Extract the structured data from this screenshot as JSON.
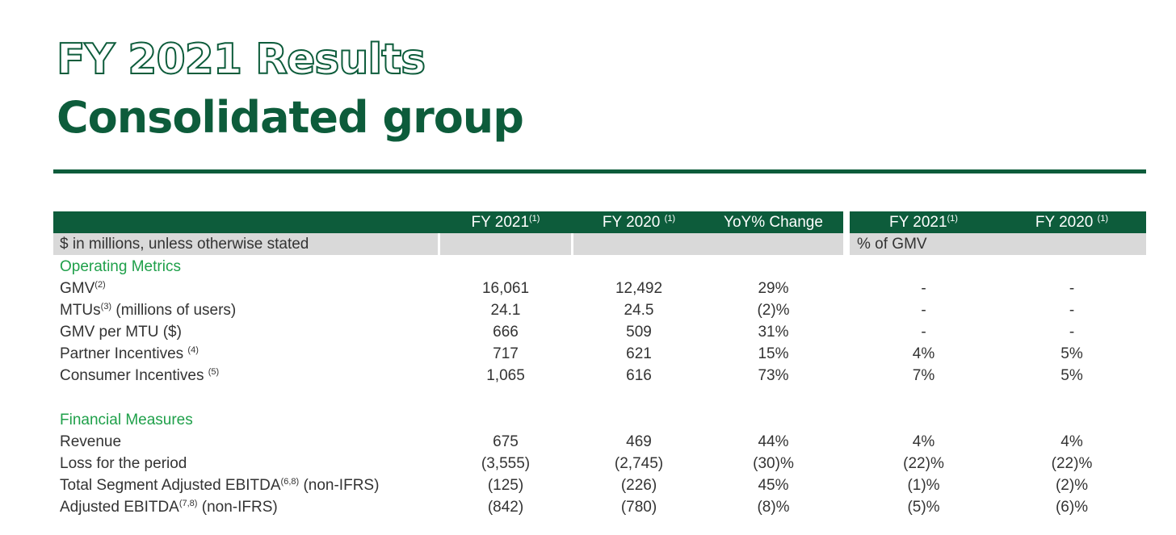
{
  "title_line1": "FY 2021 Results",
  "title_line2": "Consolidated group",
  "header": {
    "col1": "FY 2021",
    "col1_note": "(1)",
    "col2": "FY 2020",
    "col2_note": "(1)",
    "col3": "YoY% Change",
    "col4": "FY 2021",
    "col4_note": "(1)",
    "col5": "FY 2020",
    "col5_note": "(1)"
  },
  "subheader": {
    "units": "$ in millions, unless otherwise stated",
    "gmv_pct": "% of GMV"
  },
  "sections": {
    "operating": "Operating Metrics",
    "financial": "Financial Measures"
  },
  "rows": [
    {
      "label": "GMV",
      "note": "(2)",
      "suffix": "",
      "v1": "16,061",
      "v2": "12,492",
      "v3": "29%",
      "v4": "-",
      "v5": "-"
    },
    {
      "label": "MTUs",
      "note": "(3)",
      "suffix": " (millions of users)",
      "v1": "24.1",
      "v2": "24.5",
      "v3": "(2)%",
      "v4": "-",
      "v5": "-"
    },
    {
      "label": "GMV per MTU ($)",
      "note": "",
      "suffix": "",
      "v1": "666",
      "v2": "509",
      "v3": "31%",
      "v4": "-",
      "v5": "-"
    },
    {
      "label": "Partner Incentives ",
      "note": "(4)",
      "suffix": "",
      "v1": "717",
      "v2": "621",
      "v3": "15%",
      "v4": "4%",
      "v5": "5%"
    },
    {
      "label": "Consumer Incentives ",
      "note": "(5)",
      "suffix": "",
      "v1": "1,065",
      "v2": "616",
      "v3": "73%",
      "v4": "7%",
      "v5": "5%"
    },
    {
      "label": "Revenue",
      "note": "",
      "suffix": "",
      "v1": "675",
      "v2": "469",
      "v3": "44%",
      "v4": "4%",
      "v5": "4%"
    },
    {
      "label": "Loss for the period",
      "note": "",
      "suffix": "",
      "v1": "(3,555)",
      "v2": "(2,745)",
      "v3": "(30)%",
      "v4": "(22)%",
      "v5": "(22)%"
    },
    {
      "label": "Total Segment Adjusted EBITDA",
      "note": "(6,8)",
      "suffix": " (non-IFRS)",
      "v1": "(125)",
      "v2": "(226)",
      "v3": "45%",
      "v4": "(1)%",
      "v5": "(2)%"
    },
    {
      "label": "Adjusted EBITDA",
      "note": "(7,8)",
      "suffix": " (non-IFRS)",
      "v1": "(842)",
      "v2": "(780)",
      "v3": "(8)%",
      "v4": "(5)%",
      "v5": "(6)%"
    }
  ],
  "colors": {
    "brand_green": "#0d5c3b",
    "section_green": "#1fa04a",
    "subheader_grey": "#d9d9d9"
  }
}
